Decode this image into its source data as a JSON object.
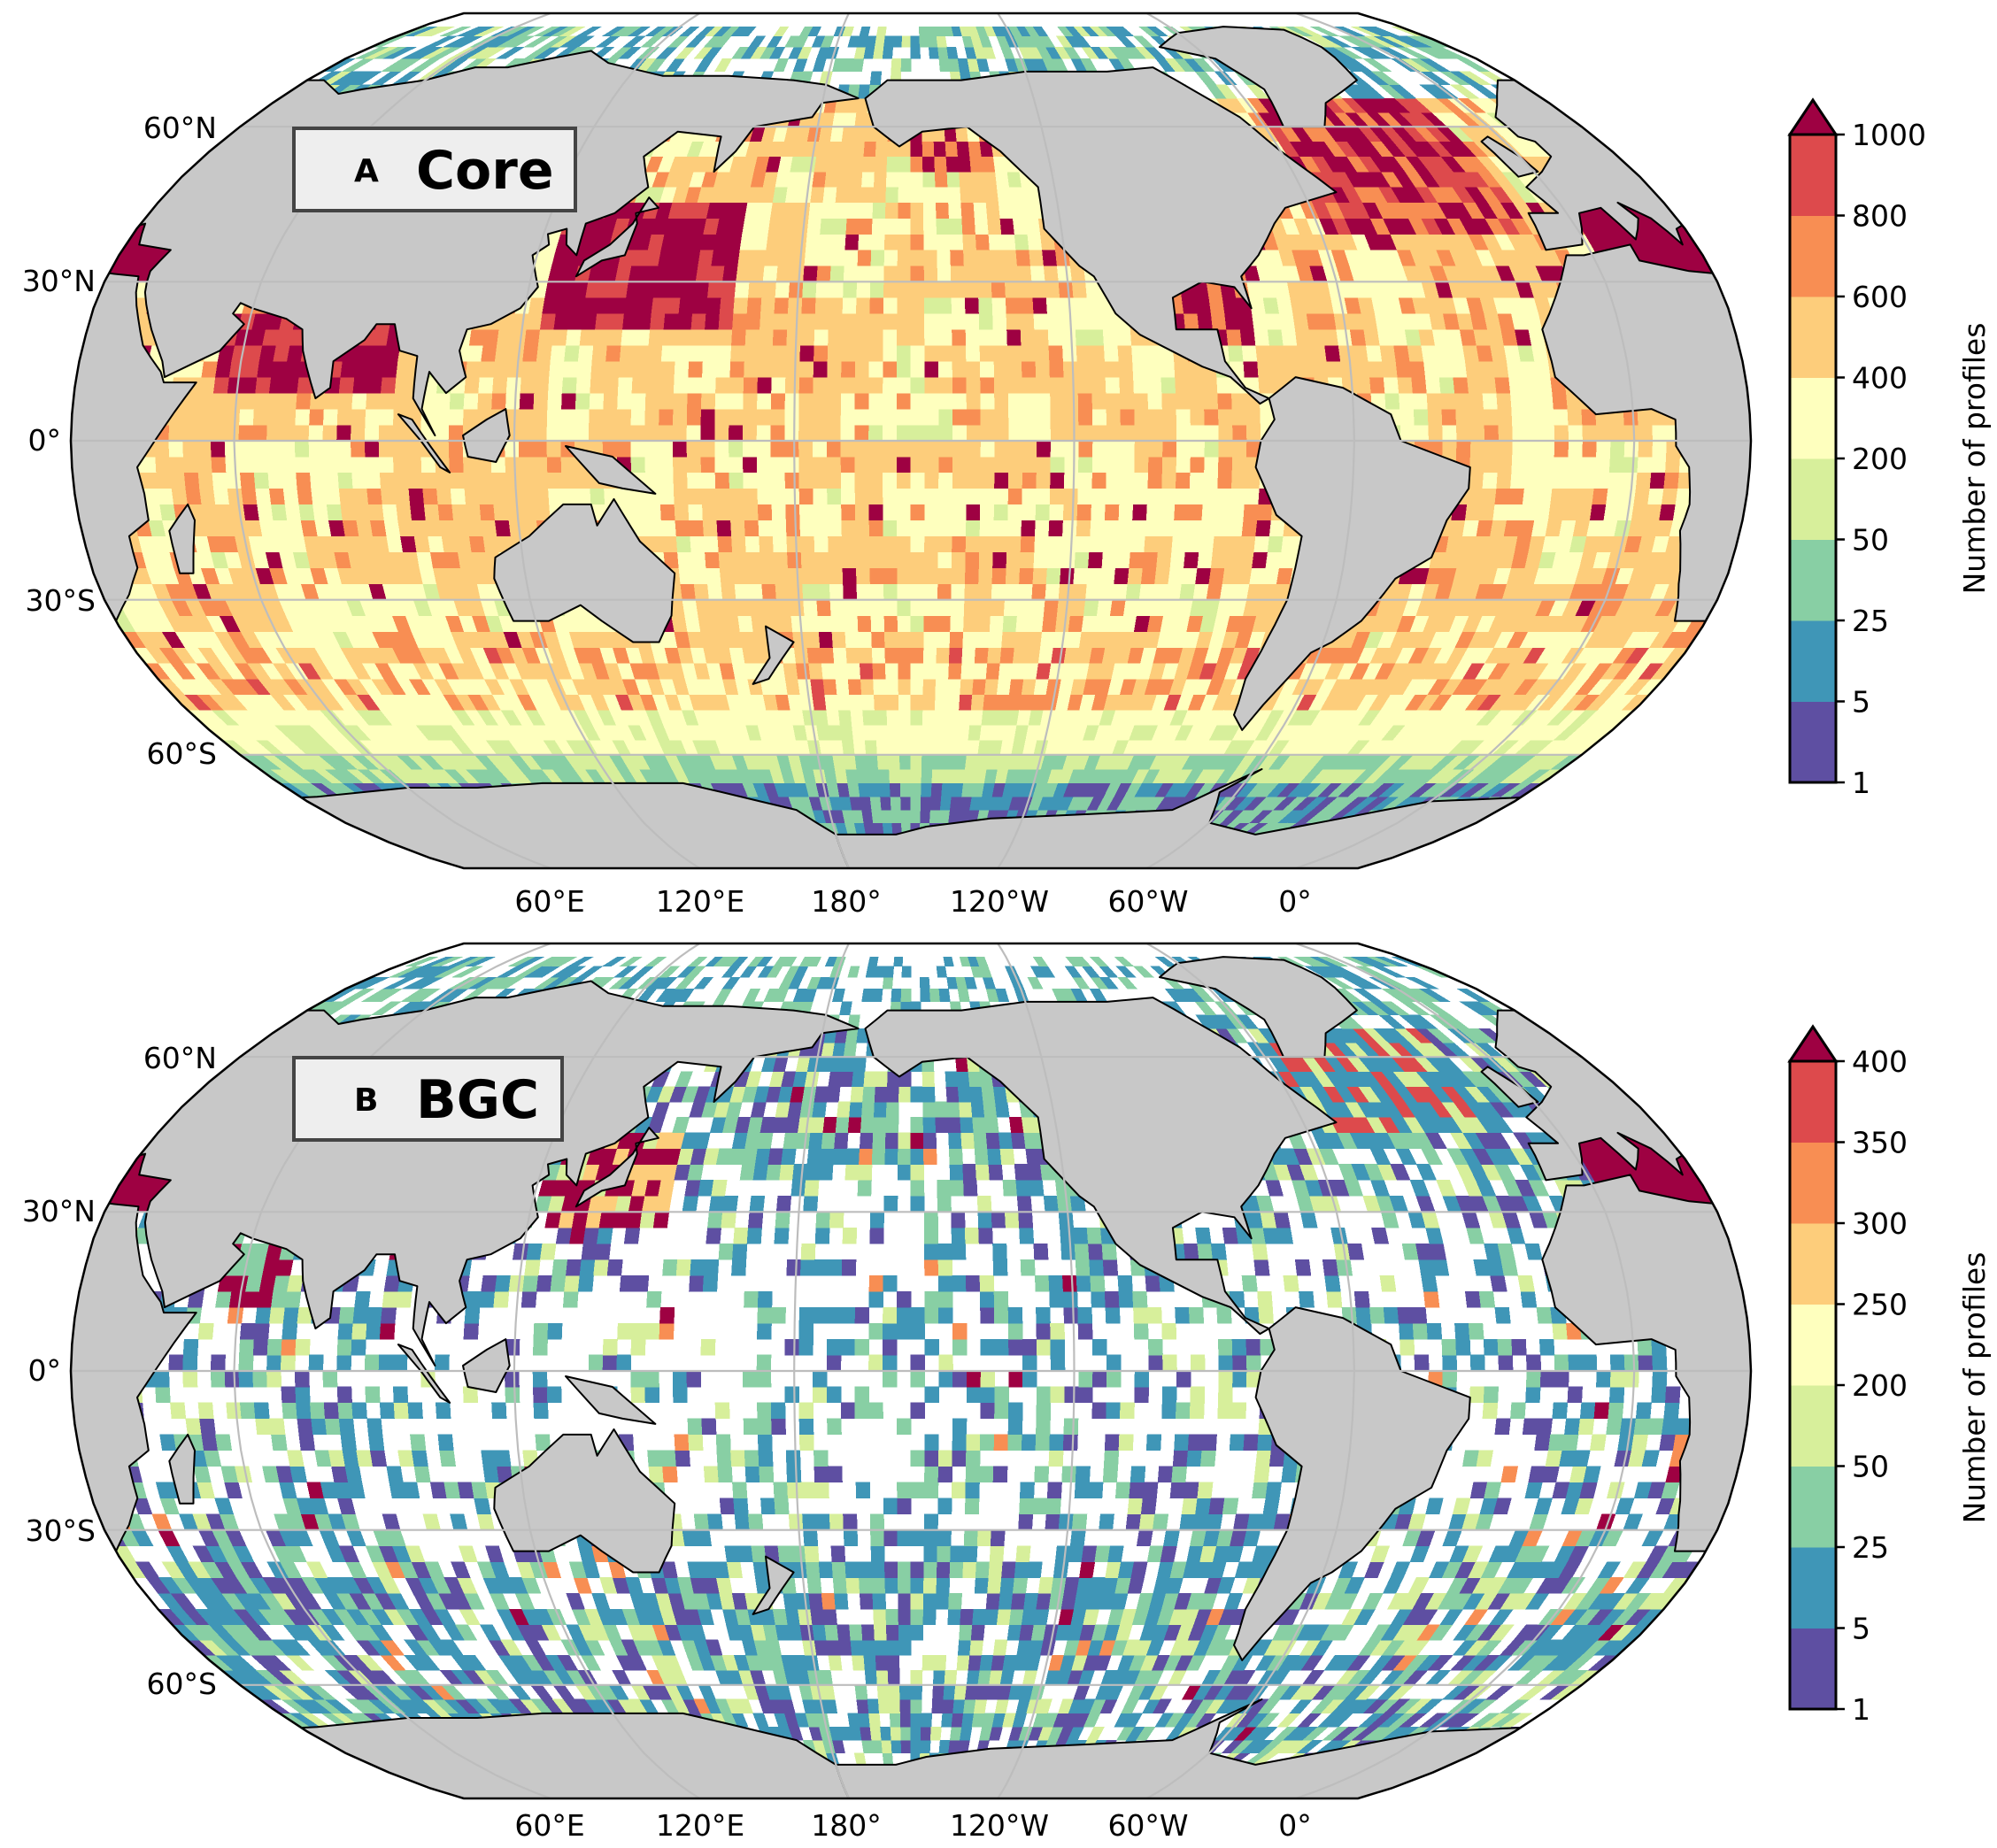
{
  "panels": [
    {
      "letter": "A",
      "title": "Core",
      "colorbar": {
        "label": "Number of profiles",
        "ticks": [
          "1",
          "5",
          "25",
          "50",
          "200",
          "400",
          "600",
          "800",
          "1000"
        ],
        "extend": "max"
      }
    },
    {
      "letter": "B",
      "title": "BGC",
      "colorbar": {
        "label": "Number of profiles",
        "ticks": [
          "1",
          "5",
          "25",
          "50",
          "200",
          "250",
          "300",
          "350",
          "400"
        ],
        "extend": "max"
      }
    }
  ],
  "lat_labels": [
    "60°N",
    "30°N",
    "0°",
    "30°S",
    "60°S"
  ],
  "lon_labels": [
    "60°E",
    "120°E",
    "180°",
    "120°W",
    "60°W",
    "0°"
  ],
  "colors": {
    "bins": [
      "#5e4fa2",
      "#3f96b7",
      "#88cfa4",
      "#d7ef9b",
      "#feffbe",
      "#fdcd7b",
      "#f88e53",
      "#dd4a4c"
    ],
    "extend": "#9e0142",
    "land": "#c8c8c8",
    "no_data": "#ffffff",
    "gridlines": "#bdbdbd"
  },
  "map": {
    "projection": "Robinson",
    "central_longitude": -155,
    "grid_resolution_deg": 3
  }
}
